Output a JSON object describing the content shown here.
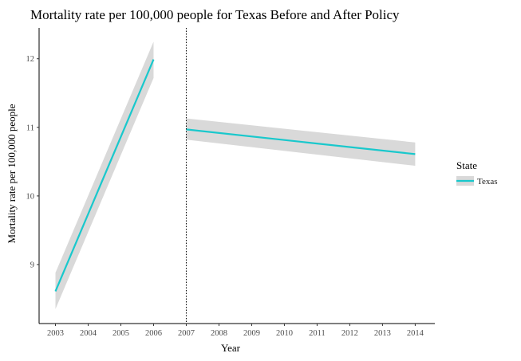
{
  "chart_data": {
    "type": "line",
    "title": "Mortality rate per 100,000 people for Texas Before and After Policy",
    "xlabel": "Year",
    "ylabel": "Mortality rate per 100,000 people",
    "x_ticks": [
      "2003",
      "2004",
      "2005",
      "2006",
      "2007",
      "2008",
      "2009",
      "2010",
      "2011",
      "2012",
      "2013",
      "2014"
    ],
    "y_ticks": [
      "9",
      "10",
      "11",
      "12"
    ],
    "xlim": [
      2002.5,
      2014.6
    ],
    "ylim": [
      8.14,
      12.45
    ],
    "grid": false,
    "policy_line_x": 2007,
    "legend": {
      "title": "State",
      "position": "right"
    },
    "series": [
      {
        "name": "Texas",
        "color": "#19c8cc",
        "ribbon_color": "#d9d9d9",
        "segments": [
          {
            "x": [
              2003,
              2006
            ],
            "y": [
              8.61,
              11.99
            ],
            "ci_lower": [
              8.35,
              11.72
            ],
            "ci_upper": [
              8.88,
              12.25
            ]
          },
          {
            "x": [
              2007,
              2014
            ],
            "y": [
              10.97,
              10.61
            ],
            "ci_lower": [
              10.82,
              10.44
            ],
            "ci_upper": [
              11.13,
              10.78
            ]
          }
        ]
      }
    ]
  }
}
